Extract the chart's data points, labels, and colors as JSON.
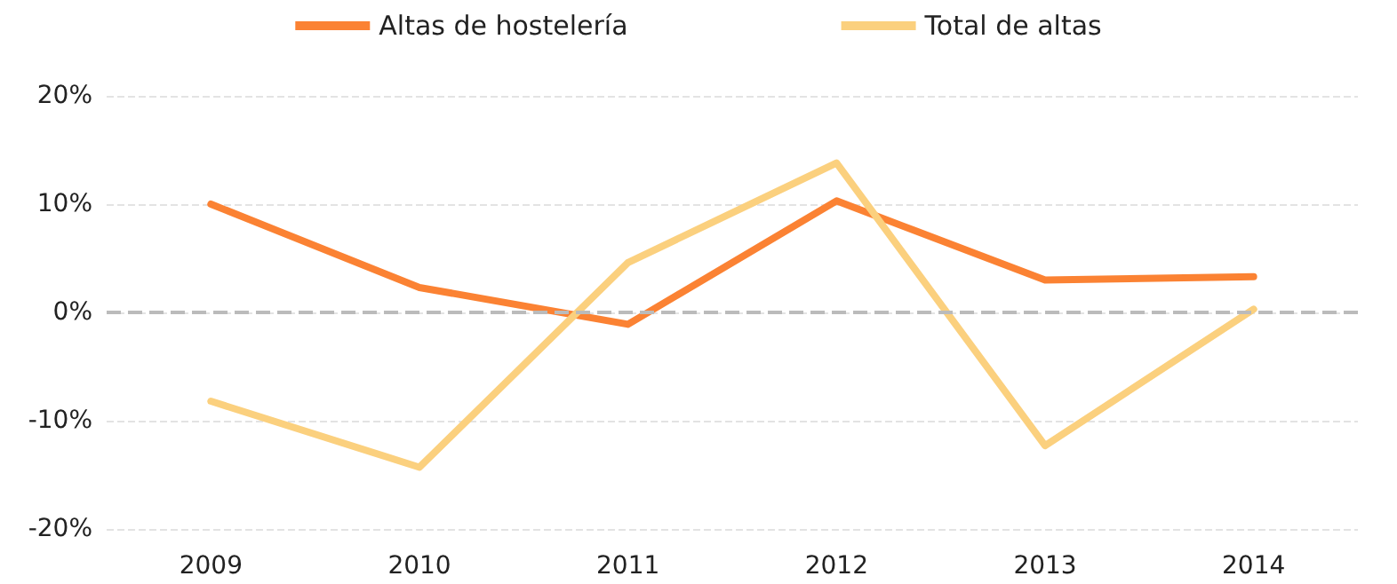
{
  "chart_data": {
    "type": "line",
    "categories": [
      "2009",
      "2010",
      "2011",
      "2012",
      "2013",
      "2014"
    ],
    "series": [
      {
        "name": "Altas de hostelería",
        "color": "#fb8233",
        "values": [
          10,
          2.3,
          -1.1,
          10.3,
          3.0,
          3.3
        ]
      },
      {
        "name": "Total de altas",
        "color": "#fbd07e",
        "values": [
          -8.2,
          -14.3,
          4.6,
          13.8,
          -12.3,
          0.3
        ]
      }
    ],
    "ylim": [
      -20,
      20
    ],
    "yticks": [
      {
        "value": -20,
        "label": "-20%"
      },
      {
        "value": -10,
        "label": "-10%"
      },
      {
        "value": 0,
        "label": "0%"
      },
      {
        "value": 10,
        "label": "10%"
      },
      {
        "value": 20,
        "label": "20%"
      }
    ],
    "grid": "y",
    "legend": "top",
    "marker": "none",
    "line_style": "solid",
    "ref_lines": [
      {
        "axis": "y",
        "value": 0,
        "color": "#bbbbbb",
        "line_style": "dashed"
      }
    ]
  }
}
